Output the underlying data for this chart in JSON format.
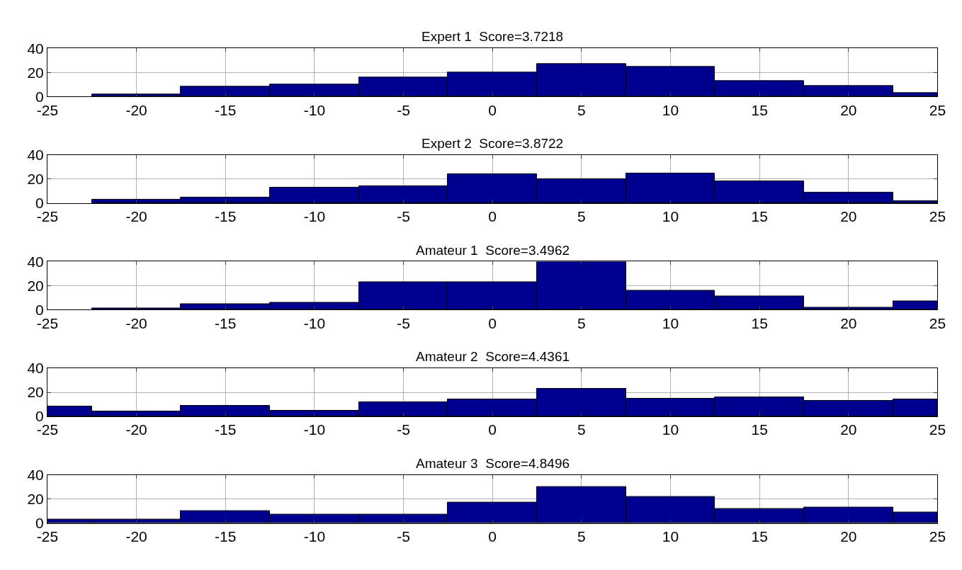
{
  "chart_data": [
    {
      "type": "histogram",
      "title": "Expert 1  Score=3.7218",
      "bins": [
        -22.5,
        -17.5,
        -12.5,
        -7.5,
        -2.5,
        2.5,
        7.5,
        12.5,
        17.5,
        22.5,
        25
      ],
      "values": [
        2,
        8,
        10,
        16,
        20,
        27,
        25,
        13,
        9,
        3
      ],
      "color": "#00008f",
      "xlim": [
        -25,
        25
      ],
      "ylim": [
        0,
        40
      ],
      "xticks": [
        -25,
        -20,
        -15,
        -10,
        -5,
        0,
        5,
        10,
        15,
        20,
        25
      ],
      "yticks": [
        0,
        20,
        40
      ],
      "grid": true
    },
    {
      "type": "histogram",
      "title": "Expert 2  Score=3.8722",
      "bins": [
        -22.5,
        -17.5,
        -12.5,
        -7.5,
        -2.5,
        2.5,
        7.5,
        12.5,
        17.5,
        22.5,
        25
      ],
      "values": [
        3,
        5,
        13,
        14,
        24,
        20,
        25,
        18,
        9,
        2
      ],
      "color": "#00008f",
      "xlim": [
        -25,
        25
      ],
      "ylim": [
        0,
        40
      ],
      "xticks": [
        -25,
        -20,
        -15,
        -10,
        -5,
        0,
        5,
        10,
        15,
        20,
        25
      ],
      "yticks": [
        0,
        20,
        40
      ],
      "grid": true
    },
    {
      "type": "histogram",
      "title": "Amateur 1  Score=3.4962",
      "bins": [
        -22.5,
        -17.5,
        -12.5,
        -7.5,
        -2.5,
        2.5,
        7.5,
        12.5,
        17.5,
        22.5,
        25
      ],
      "values": [
        1,
        5,
        6,
        23,
        23,
        40,
        16,
        11,
        2,
        7
      ],
      "color": "#00008f",
      "xlim": [
        -25,
        25
      ],
      "ylim": [
        0,
        40
      ],
      "xticks": [
        -25,
        -20,
        -15,
        -10,
        -5,
        0,
        5,
        10,
        15,
        20,
        25
      ],
      "yticks": [
        0,
        20,
        40
      ],
      "grid": true
    },
    {
      "type": "histogram",
      "title": "Amateur 2  Score=4.4361",
      "bins": [
        -25,
        -22.5,
        -17.5,
        -12.5,
        -7.5,
        -2.5,
        2.5,
        7.5,
        12.5,
        17.5,
        22.5,
        25
      ],
      "values": [
        8,
        4,
        9,
        5,
        12,
        14,
        23,
        15,
        16,
        13,
        14
      ],
      "color": "#00008f",
      "xlim": [
        -25,
        25
      ],
      "ylim": [
        0,
        40
      ],
      "xticks": [
        -25,
        -20,
        -15,
        -10,
        -5,
        0,
        5,
        10,
        15,
        20,
        25
      ],
      "yticks": [
        0,
        20,
        40
      ],
      "grid": true
    },
    {
      "type": "histogram",
      "title": "Amateur 3  Score=4.8496",
      "bins": [
        -25,
        -22.5,
        -17.5,
        -12.5,
        -7.5,
        -2.5,
        2.5,
        7.5,
        12.5,
        17.5,
        22.5,
        25
      ],
      "values": [
        3,
        3,
        10,
        7,
        7,
        17,
        30,
        22,
        12,
        13,
        9
      ],
      "color": "#00008f",
      "xlim": [
        -25,
        25
      ],
      "ylim": [
        0,
        40
      ],
      "xticks": [
        -25,
        -20,
        -15,
        -10,
        -5,
        0,
        5,
        10,
        15,
        20,
        25
      ],
      "yticks": [
        0,
        20,
        40
      ],
      "grid": true
    }
  ]
}
